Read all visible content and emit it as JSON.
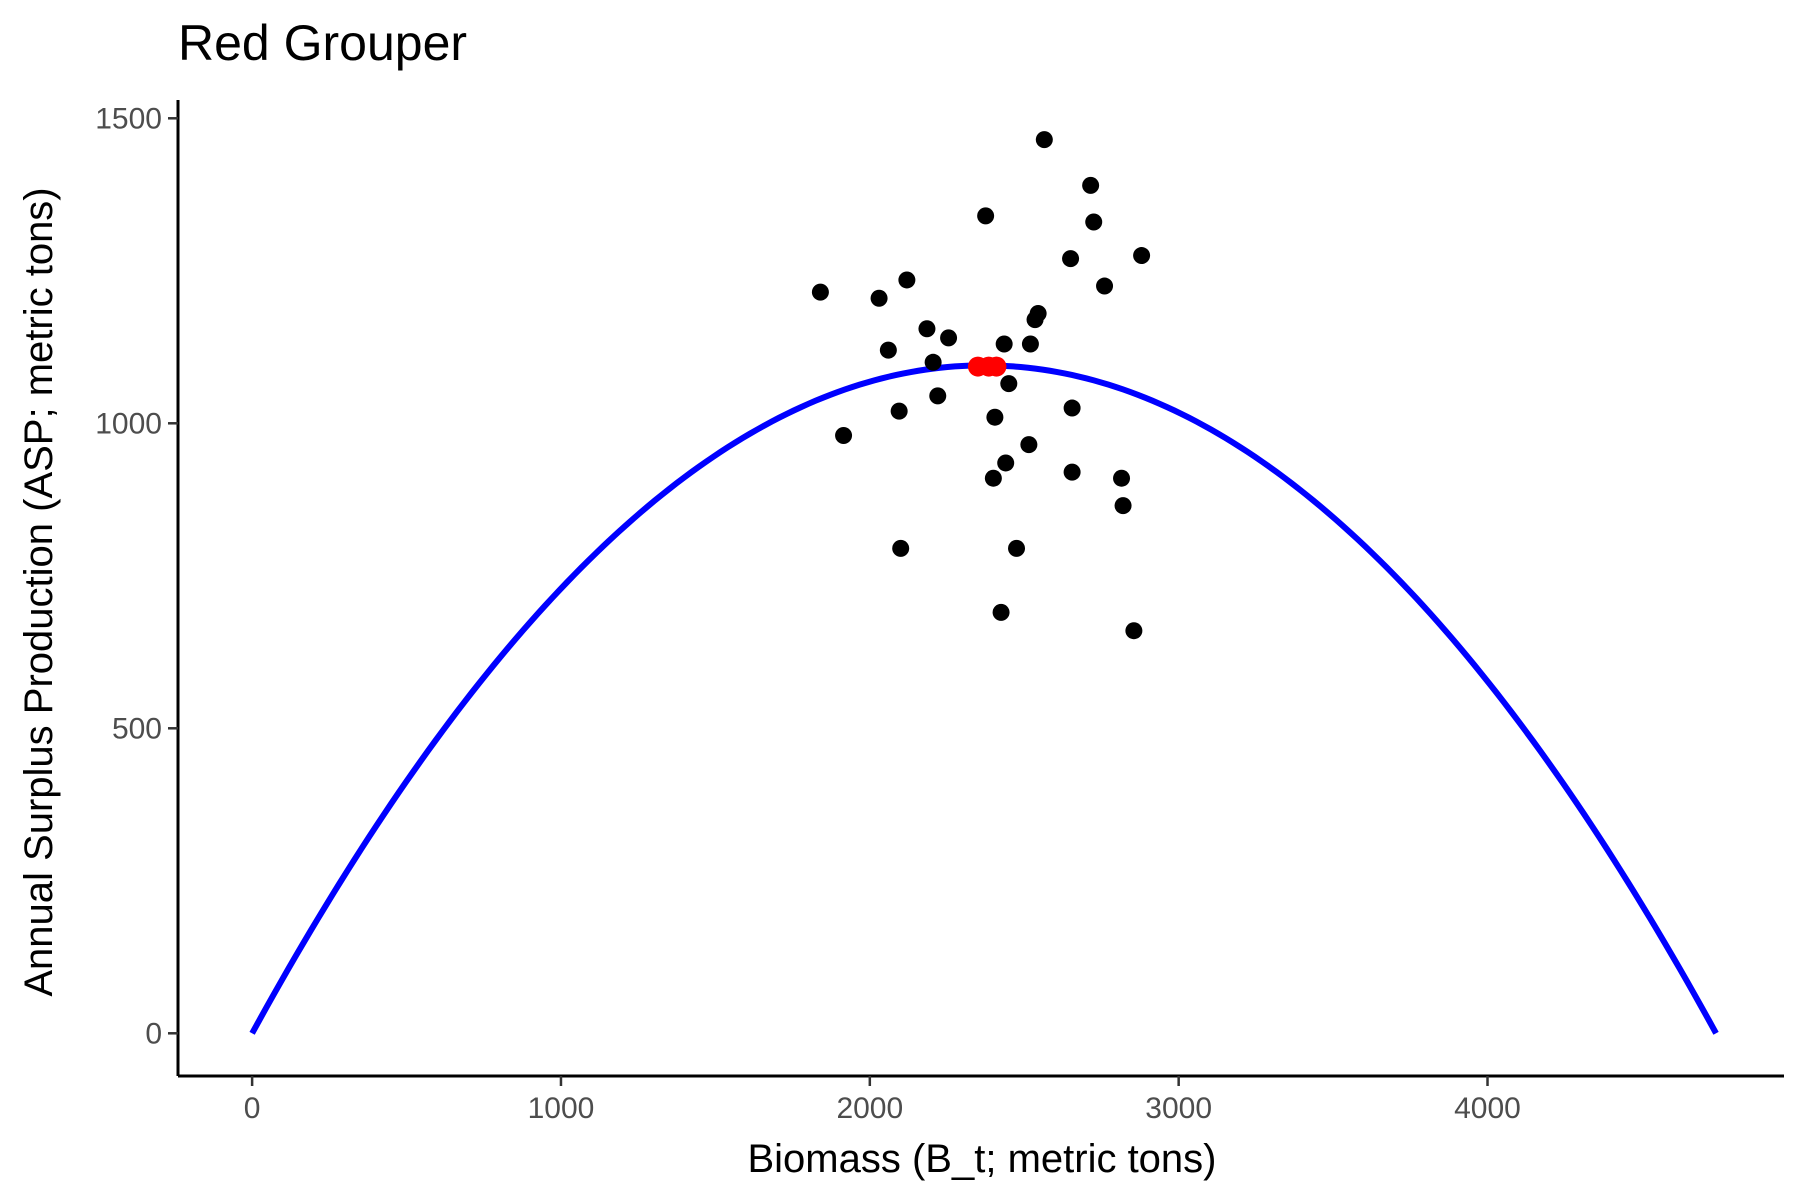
{
  "chart_data": {
    "type": "scatter",
    "title": "Red Grouper",
    "xlabel": "Biomass (B_t; metric tons)",
    "ylabel": "Annual Surplus Production (ASP; metric tons)",
    "xlim": [
      -240,
      4960
    ],
    "ylim": [
      -70,
      1530
    ],
    "x_ticks": [
      0,
      1000,
      2000,
      3000,
      4000
    ],
    "y_ticks": [
      0,
      500,
      1000,
      1500
    ],
    "x_tick_labels": [
      "0",
      "1000",
      "2000",
      "3000",
      "4000"
    ],
    "y_tick_labels": [
      "0",
      "500",
      "1000",
      "1500"
    ],
    "grid": false,
    "legend": "none",
    "curve": {
      "type": "line",
      "color": "#0000ff",
      "shape": "parabola",
      "x_start": 0,
      "x_end": 4740,
      "peak_x": 2370,
      "peak_y": 1095
    },
    "points": {
      "color": "#000000",
      "x": [
        1840,
        1915,
        2030,
        2060,
        2095,
        2100,
        2120,
        2185,
        2205,
        2220,
        2255,
        2375,
        2400,
        2405,
        2410,
        2425,
        2435,
        2440,
        2450,
        2475,
        2515,
        2520,
        2535,
        2545,
        2565,
        2650,
        2655,
        2655,
        2715,
        2725,
        2760,
        2815,
        2820,
        2855,
        2880
      ],
      "y": [
        1215,
        980,
        1205,
        1120,
        1020,
        795,
        1235,
        1155,
        1100,
        1045,
        1140,
        1340,
        910,
        1010,
        1095,
        690,
        1130,
        935,
        1065,
        795,
        965,
        1130,
        1170,
        1180,
        1465,
        1270,
        1025,
        920,
        1390,
        1330,
        1225,
        910,
        865,
        660,
        1275
      ]
    },
    "highlight_points": {
      "color": "#ff0000",
      "x": [
        2350,
        2385,
        2410
      ],
      "y": [
        1093,
        1093,
        1093
      ]
    }
  }
}
